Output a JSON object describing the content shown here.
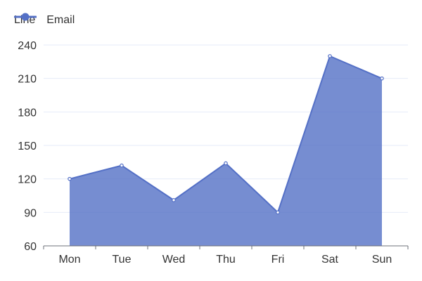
{
  "chart_data": {
    "type": "area",
    "title": "Line",
    "categories": [
      "Mon",
      "Tue",
      "Wed",
      "Thu",
      "Fri",
      "Sat",
      "Sun"
    ],
    "series": [
      {
        "name": "Email",
        "values": [
          120,
          132,
          101,
          134,
          90,
          230,
          210
        ],
        "color": "#5470c6",
        "area_color": "#5470c6"
      }
    ],
    "ylim": [
      60,
      240
    ],
    "yticks": [
      60,
      90,
      120,
      150,
      180,
      210,
      240
    ],
    "grid": true,
    "legend": "top-left"
  }
}
